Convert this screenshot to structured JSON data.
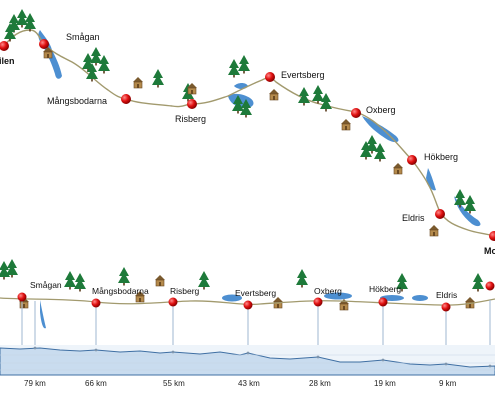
{
  "map": {
    "start_label_partial": "ilen",
    "end_label_partial": "Mo",
    "stations": [
      {
        "name": "Smågan"
      },
      {
        "name": "Mångsbodarna"
      },
      {
        "name": "Risberg"
      },
      {
        "name": "Evertsberg"
      },
      {
        "name": "Oxberg"
      },
      {
        "name": "Hökberg"
      },
      {
        "name": "Eldris"
      }
    ]
  },
  "profile": {
    "stations": [
      {
        "name": "Smågan",
        "km": "79 km"
      },
      {
        "name": "Mångsbodarna",
        "km": "66 km"
      },
      {
        "name": "Risberg",
        "km": "55 km"
      },
      {
        "name": "Evertsberg",
        "km": "43 km"
      },
      {
        "name": "Oxberg",
        "km": "28 km"
      },
      {
        "name": "Hökberg",
        "km": "19 km"
      },
      {
        "name": "Eldris",
        "km": "9 km"
      }
    ]
  },
  "colors": {
    "marker": "#e01010",
    "route": "#a29a6e",
    "lake": "#4d8fd1",
    "tree": "#1e7a3a",
    "profile_fill": "#c9dcef",
    "profile_line": "#3f6fa3"
  }
}
